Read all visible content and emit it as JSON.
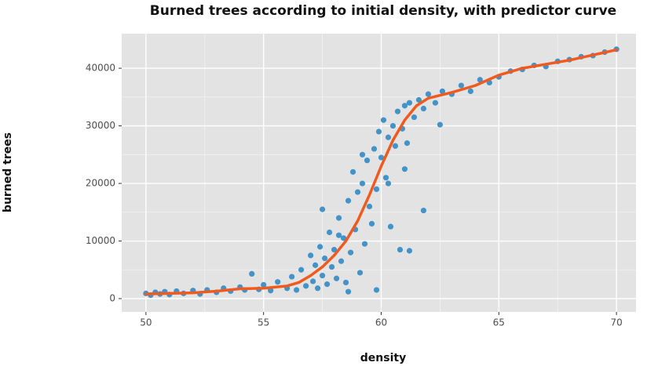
{
  "chart_data": {
    "type": "scatter",
    "title": "Burned trees according to initial density, with predictor curve",
    "x_label": "density",
    "y_label": "burned trees",
    "xlim": [
      48.97,
      70.83
    ],
    "ylim": [
      -2313,
      46000
    ],
    "xticks": [
      50,
      55,
      60,
      65,
      70
    ],
    "yticks": [
      0,
      10000,
      20000,
      30000,
      40000
    ],
    "grid": true,
    "points": {
      "color": "#4393c8",
      "x": [
        50,
        50.2,
        50.4,
        50.6,
        50.8,
        51,
        51.3,
        51.6,
        52,
        52.3,
        52.6,
        53,
        53.3,
        53.6,
        54,
        54.2,
        54.5,
        54.8,
        55,
        55.3,
        55.6,
        56,
        56.2,
        56.4,
        56.6,
        56.8,
        57,
        57.1,
        57.2,
        57.3,
        57.4,
        57.5,
        57.6,
        57.7,
        57.8,
        57.9,
        58,
        58.1,
        58.2,
        58.3,
        58.4,
        58.5,
        58.6,
        58.7,
        58.8,
        58.9,
        59,
        59.1,
        59.2,
        59.3,
        59.4,
        59.5,
        59.6,
        59.7,
        59.8,
        59.9,
        60,
        60.1,
        60.2,
        60.3,
        60.4,
        60.5,
        60.6,
        60.7,
        60.8,
        60.9,
        61,
        61.1,
        61.2,
        61.4,
        61.6,
        61.8,
        62,
        62.3,
        62.6,
        63,
        63.4,
        63.8,
        64.2,
        64.6,
        65,
        65.5,
        66,
        66.5,
        67,
        67.5,
        68,
        68.5,
        69,
        69.5,
        70,
        57.5,
        58.2,
        59.8,
        61.8,
        61.2,
        58.6,
        60.3,
        59.2,
        61,
        62.5
      ],
      "y": [
        900,
        600,
        1100,
        800,
        1200,
        700,
        1300,
        900,
        1400,
        800,
        1500,
        1100,
        1800,
        1300,
        2000,
        1500,
        4300,
        1600,
        2400,
        1400,
        2900,
        1800,
        3800,
        1500,
        5000,
        2200,
        7500,
        3000,
        5800,
        1800,
        9000,
        4000,
        7000,
        2500,
        11500,
        5500,
        8500,
        3500,
        14000,
        6500,
        10500,
        2800,
        17000,
        8000,
        22000,
        12000,
        18500,
        4500,
        20000,
        9500,
        24000,
        16000,
        13000,
        26000,
        19000,
        29000,
        24500,
        31000,
        21000,
        28000,
        12500,
        30000,
        26500,
        32500,
        8500,
        29500,
        33500,
        27000,
        34000,
        31500,
        34500,
        33000,
        35500,
        34000,
        36000,
        35500,
        37000,
        36000,
        38000,
        37500,
        38500,
        39500,
        39800,
        40500,
        40300,
        41200,
        41500,
        42000,
        42200,
        42800,
        43300,
        15500,
        11000,
        1500,
        15300,
        8300,
        1200,
        20000,
        25000,
        22500,
        30200
      ]
    },
    "curve": {
      "color": "#f05a1e",
      "x": [
        50,
        51,
        52,
        53,
        54,
        55,
        56,
        56.5,
        57,
        57.5,
        58,
        58.5,
        59,
        59.5,
        60,
        60.5,
        61,
        61.5,
        62,
        63,
        64,
        65,
        66,
        67,
        68,
        69,
        70
      ],
      "y": [
        800,
        900,
        1000,
        1300,
        1700,
        1800,
        2200,
        2800,
        4000,
        5500,
        7500,
        10000,
        13500,
        18000,
        23000,
        27500,
        31000,
        33500,
        34800,
        35800,
        37000,
        38800,
        40000,
        40700,
        41400,
        42300,
        43200
      ]
    }
  }
}
